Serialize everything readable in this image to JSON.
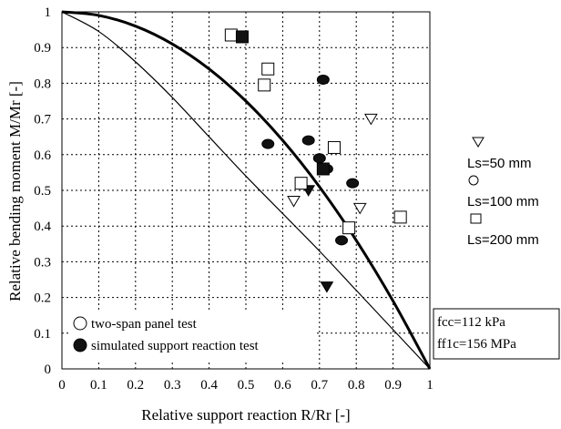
{
  "chart_data": {
    "type": "scatter",
    "xlabel": "Relative support reaction R/Rr  [-]",
    "ylabel": "Relative bending moment M/Mr  [-]",
    "xlim": [
      0,
      1
    ],
    "ylim": [
      0,
      1
    ],
    "x_ticks": [
      "0",
      "0.1",
      "0.2",
      "0.3",
      "0.4",
      "0.5",
      "0.6",
      "0.7",
      "0.8",
      "0.9",
      "1"
    ],
    "y_ticks": [
      "0",
      "0.1",
      "0.2",
      "0.3",
      "0.4",
      "0.5",
      "0.6",
      "0.7",
      "0.8",
      "0.9",
      "1"
    ],
    "grid": "dashed",
    "curves": [
      {
        "style": "thick",
        "x": [
          0,
          0.1,
          0.2,
          0.3,
          0.4,
          0.5,
          0.6,
          0.7,
          0.8,
          0.9,
          1
        ],
        "y": [
          1,
          0.99,
          0.96,
          0.91,
          0.84,
          0.75,
          0.64,
          0.51,
          0.36,
          0.19,
          0
        ]
      },
      {
        "style": "thin",
        "x": [
          0,
          0.1,
          0.2,
          0.3,
          0.4,
          0.5,
          0.6,
          0.7,
          0.8,
          0.9,
          1
        ],
        "y": [
          1,
          0.945,
          0.86,
          0.76,
          0.65,
          0.54,
          0.435,
          0.33,
          0.22,
          0.11,
          0
        ]
      }
    ],
    "series": [
      {
        "name": "Ls=50 mm",
        "marker": "triangle",
        "points_open": [
          [
            0.63,
            0.47
          ],
          [
            0.81,
            0.45
          ],
          [
            0.84,
            0.7
          ]
        ],
        "points_filled": [
          [
            0.67,
            0.5
          ],
          [
            0.72,
            0.23
          ]
        ]
      },
      {
        "name": "Ls=100 mm",
        "marker": "circle",
        "points_open": [],
        "points_filled": [
          [
            0.56,
            0.63
          ],
          [
            0.67,
            0.64
          ],
          [
            0.7,
            0.59
          ],
          [
            0.71,
            0.81
          ],
          [
            0.72,
            0.56
          ],
          [
            0.79,
            0.52
          ],
          [
            0.76,
            0.36
          ]
        ]
      },
      {
        "name": "Ls=200 mm",
        "marker": "square",
        "points_open": [
          [
            0.46,
            0.935
          ],
          [
            0.55,
            0.795
          ],
          [
            0.56,
            0.84
          ],
          [
            0.65,
            0.52
          ],
          [
            0.74,
            0.62
          ],
          [
            0.78,
            0.395
          ],
          [
            0.92,
            0.425
          ]
        ],
        "points_filled": [
          [
            0.49,
            0.93
          ],
          [
            0.71,
            0.56
          ]
        ]
      }
    ],
    "marker_legend": [
      {
        "label": "two-span panel test",
        "fill": "open"
      },
      {
        "label": "simulated support reaction test",
        "fill": "filled"
      }
    ],
    "annotation": [
      "fcc=112 kPa",
      "ff1c=156 MPa"
    ]
  }
}
